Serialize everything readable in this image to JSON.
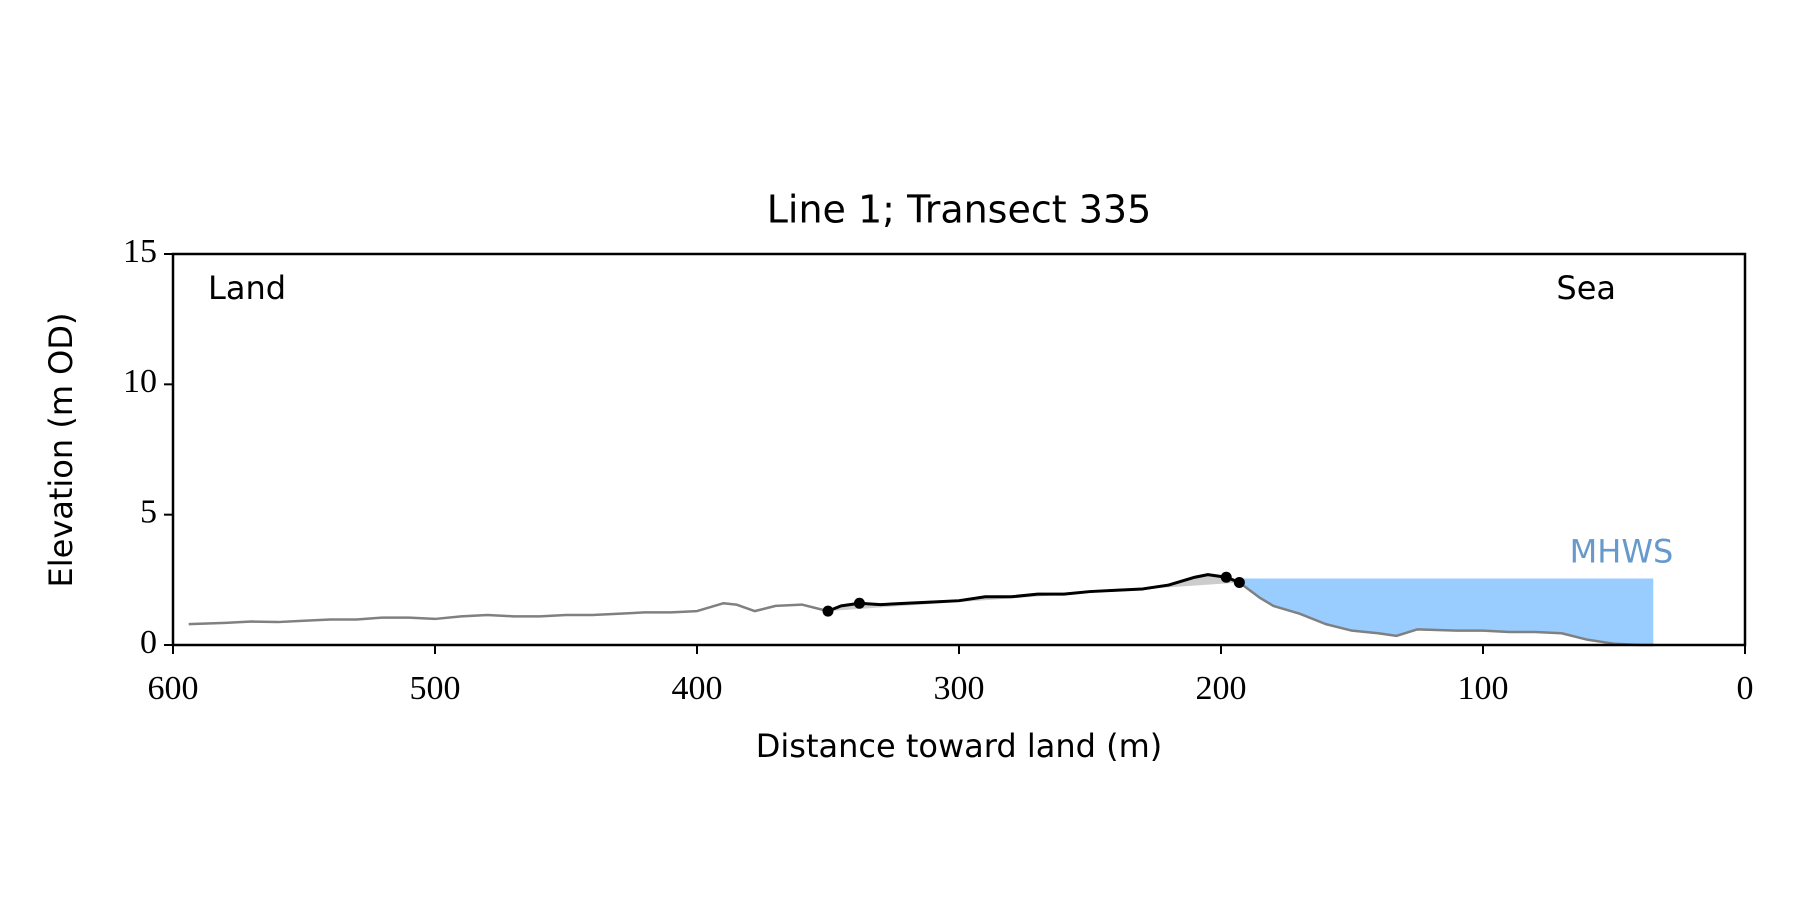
{
  "chart_data": {
    "type": "line",
    "title": "Line 1; Transect 335",
    "xlabel": "Distance toward land (m)",
    "ylabel": "Elevation (m OD)",
    "annotations": [
      "Land",
      "Sea"
    ],
    "xlim": [
      600,
      0
    ],
    "xticks": [
      600,
      500,
      400,
      300,
      200,
      100,
      0
    ],
    "ylim": [
      0,
      15
    ],
    "yticks": [
      0,
      5,
      10,
      15
    ],
    "profile": {
      "color": "#808080",
      "x": [
        594,
        580,
        570,
        560,
        550,
        540,
        530,
        520,
        510,
        500,
        490,
        480,
        470,
        460,
        450,
        440,
        430,
        420,
        410,
        400,
        390,
        385,
        378,
        370,
        360,
        350,
        345,
        338,
        330,
        320,
        310,
        300,
        290,
        280,
        270,
        260,
        250,
        240,
        230,
        220,
        210,
        205,
        198,
        193,
        185,
        180,
        170,
        160,
        150,
        140,
        133,
        125,
        110,
        100,
        90,
        80,
        70,
        60,
        50,
        40,
        35
      ],
      "values": [
        0.8,
        0.85,
        0.9,
        0.88,
        0.93,
        0.98,
        0.98,
        1.05,
        1.05,
        1.0,
        1.1,
        1.15,
        1.1,
        1.1,
        1.15,
        1.15,
        1.2,
        1.25,
        1.25,
        1.3,
        1.6,
        1.55,
        1.3,
        1.5,
        1.55,
        1.3,
        1.5,
        1.6,
        1.55,
        1.6,
        1.65,
        1.7,
        1.85,
        1.85,
        1.95,
        1.95,
        2.05,
        2.1,
        2.15,
        2.3,
        2.6,
        2.7,
        2.6,
        2.4,
        1.8,
        1.5,
        1.2,
        0.8,
        0.55,
        0.45,
        0.35,
        0.6,
        0.55,
        0.55,
        0.5,
        0.5,
        0.45,
        0.2,
        0.05,
        0.0,
        0.0
      ]
    },
    "dune": {
      "color": "#000000",
      "fill": "#cccccc",
      "x": [
        350,
        345,
        338,
        330,
        320,
        310,
        300,
        290,
        280,
        270,
        260,
        250,
        240,
        230,
        220,
        210,
        205,
        198,
        193
      ],
      "values": [
        1.3,
        1.5,
        1.6,
        1.55,
        1.6,
        1.65,
        1.7,
        1.85,
        1.85,
        1.95,
        1.95,
        2.05,
        2.1,
        2.15,
        2.3,
        2.6,
        2.7,
        2.6,
        2.4
      ]
    },
    "points": {
      "color": "#000000",
      "x": [
        350,
        338,
        198,
        193
      ],
      "values": [
        1.3,
        1.6,
        2.6,
        2.4
      ]
    },
    "mhws": {
      "label": "MHWS",
      "value": 2.55,
      "x": [
        193,
        35
      ],
      "color": "#99ccff",
      "label_color": "#6699cc"
    }
  }
}
